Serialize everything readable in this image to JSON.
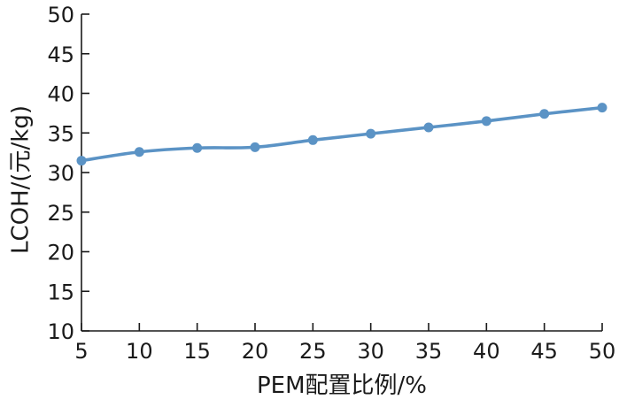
{
  "chart_data": {
    "type": "line",
    "title": "",
    "xlabel": "PEM配置比例/%",
    "ylabel": "LCOH/(元/kg)",
    "xlim": [
      5,
      50
    ],
    "ylim": [
      10,
      50
    ],
    "x_ticks": [
      5,
      10,
      15,
      20,
      25,
      30,
      35,
      40,
      45,
      50
    ],
    "y_ticks": [
      10,
      15,
      20,
      25,
      30,
      35,
      40,
      45,
      50
    ],
    "grid": false,
    "series": [
      {
        "x": [
          5,
          10,
          15,
          20,
          25,
          30,
          35,
          40,
          45,
          50
        ],
        "values": [
          31.5,
          32.6,
          33.1,
          33.2,
          34.1,
          34.9,
          35.7,
          36.5,
          37.4,
          38.2
        ],
        "color": "#5b93c5",
        "marker": "circle",
        "smooth": true
      }
    ]
  }
}
